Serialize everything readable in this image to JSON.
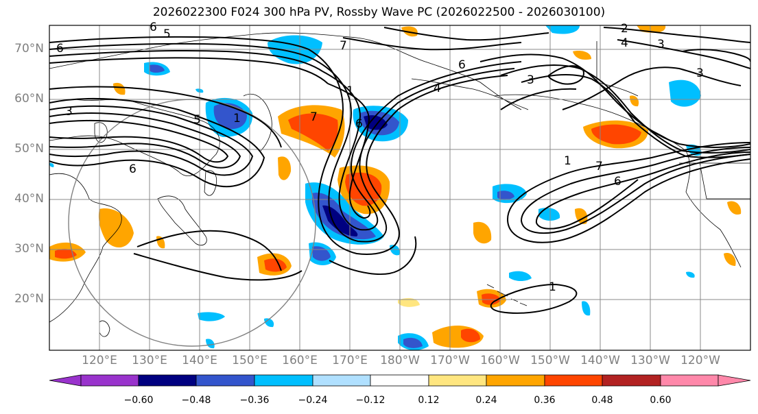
{
  "title": "2026022300 F024 300 hPa PV, Rossby Wave PC (2026022500 - 2026030100)",
  "lat_labels": [
    "70°N",
    "60°N",
    "50°N",
    "40°N",
    "30°N",
    "20°N"
  ],
  "lon_labels": [
    "120°E",
    "130°E",
    "140°E",
    "150°E",
    "160°E",
    "170°E",
    "180°W",
    "170°W",
    "160°W",
    "150°W",
    "140°W",
    "130°W",
    "120°W"
  ],
  "colorbar": {
    "ticks": [
      "−0.60",
      "−0.48",
      "−0.36",
      "−0.24",
      "−0.12",
      "0.12",
      "0.24",
      "0.36",
      "0.48",
      "0.60"
    ],
    "colors": [
      "#9933cc",
      "#000080",
      "#3355cc",
      "#00bfff",
      "#b0e0ff",
      "#ffffff",
      "#ffe680",
      "#ffa500",
      "#ff4500",
      "#b22222",
      "#ff88aa"
    ]
  },
  "contour_labels": [
    "6",
    "5",
    "2",
    "7",
    "6",
    "3",
    "4",
    "3",
    "3",
    "5",
    "6",
    "7",
    "1",
    "1",
    "6",
    "3",
    "6",
    "1",
    "7",
    "6",
    "1",
    "4"
  ],
  "colors": {
    "grid": "#888888",
    "coast": "#000000",
    "contour": "#000000"
  }
}
